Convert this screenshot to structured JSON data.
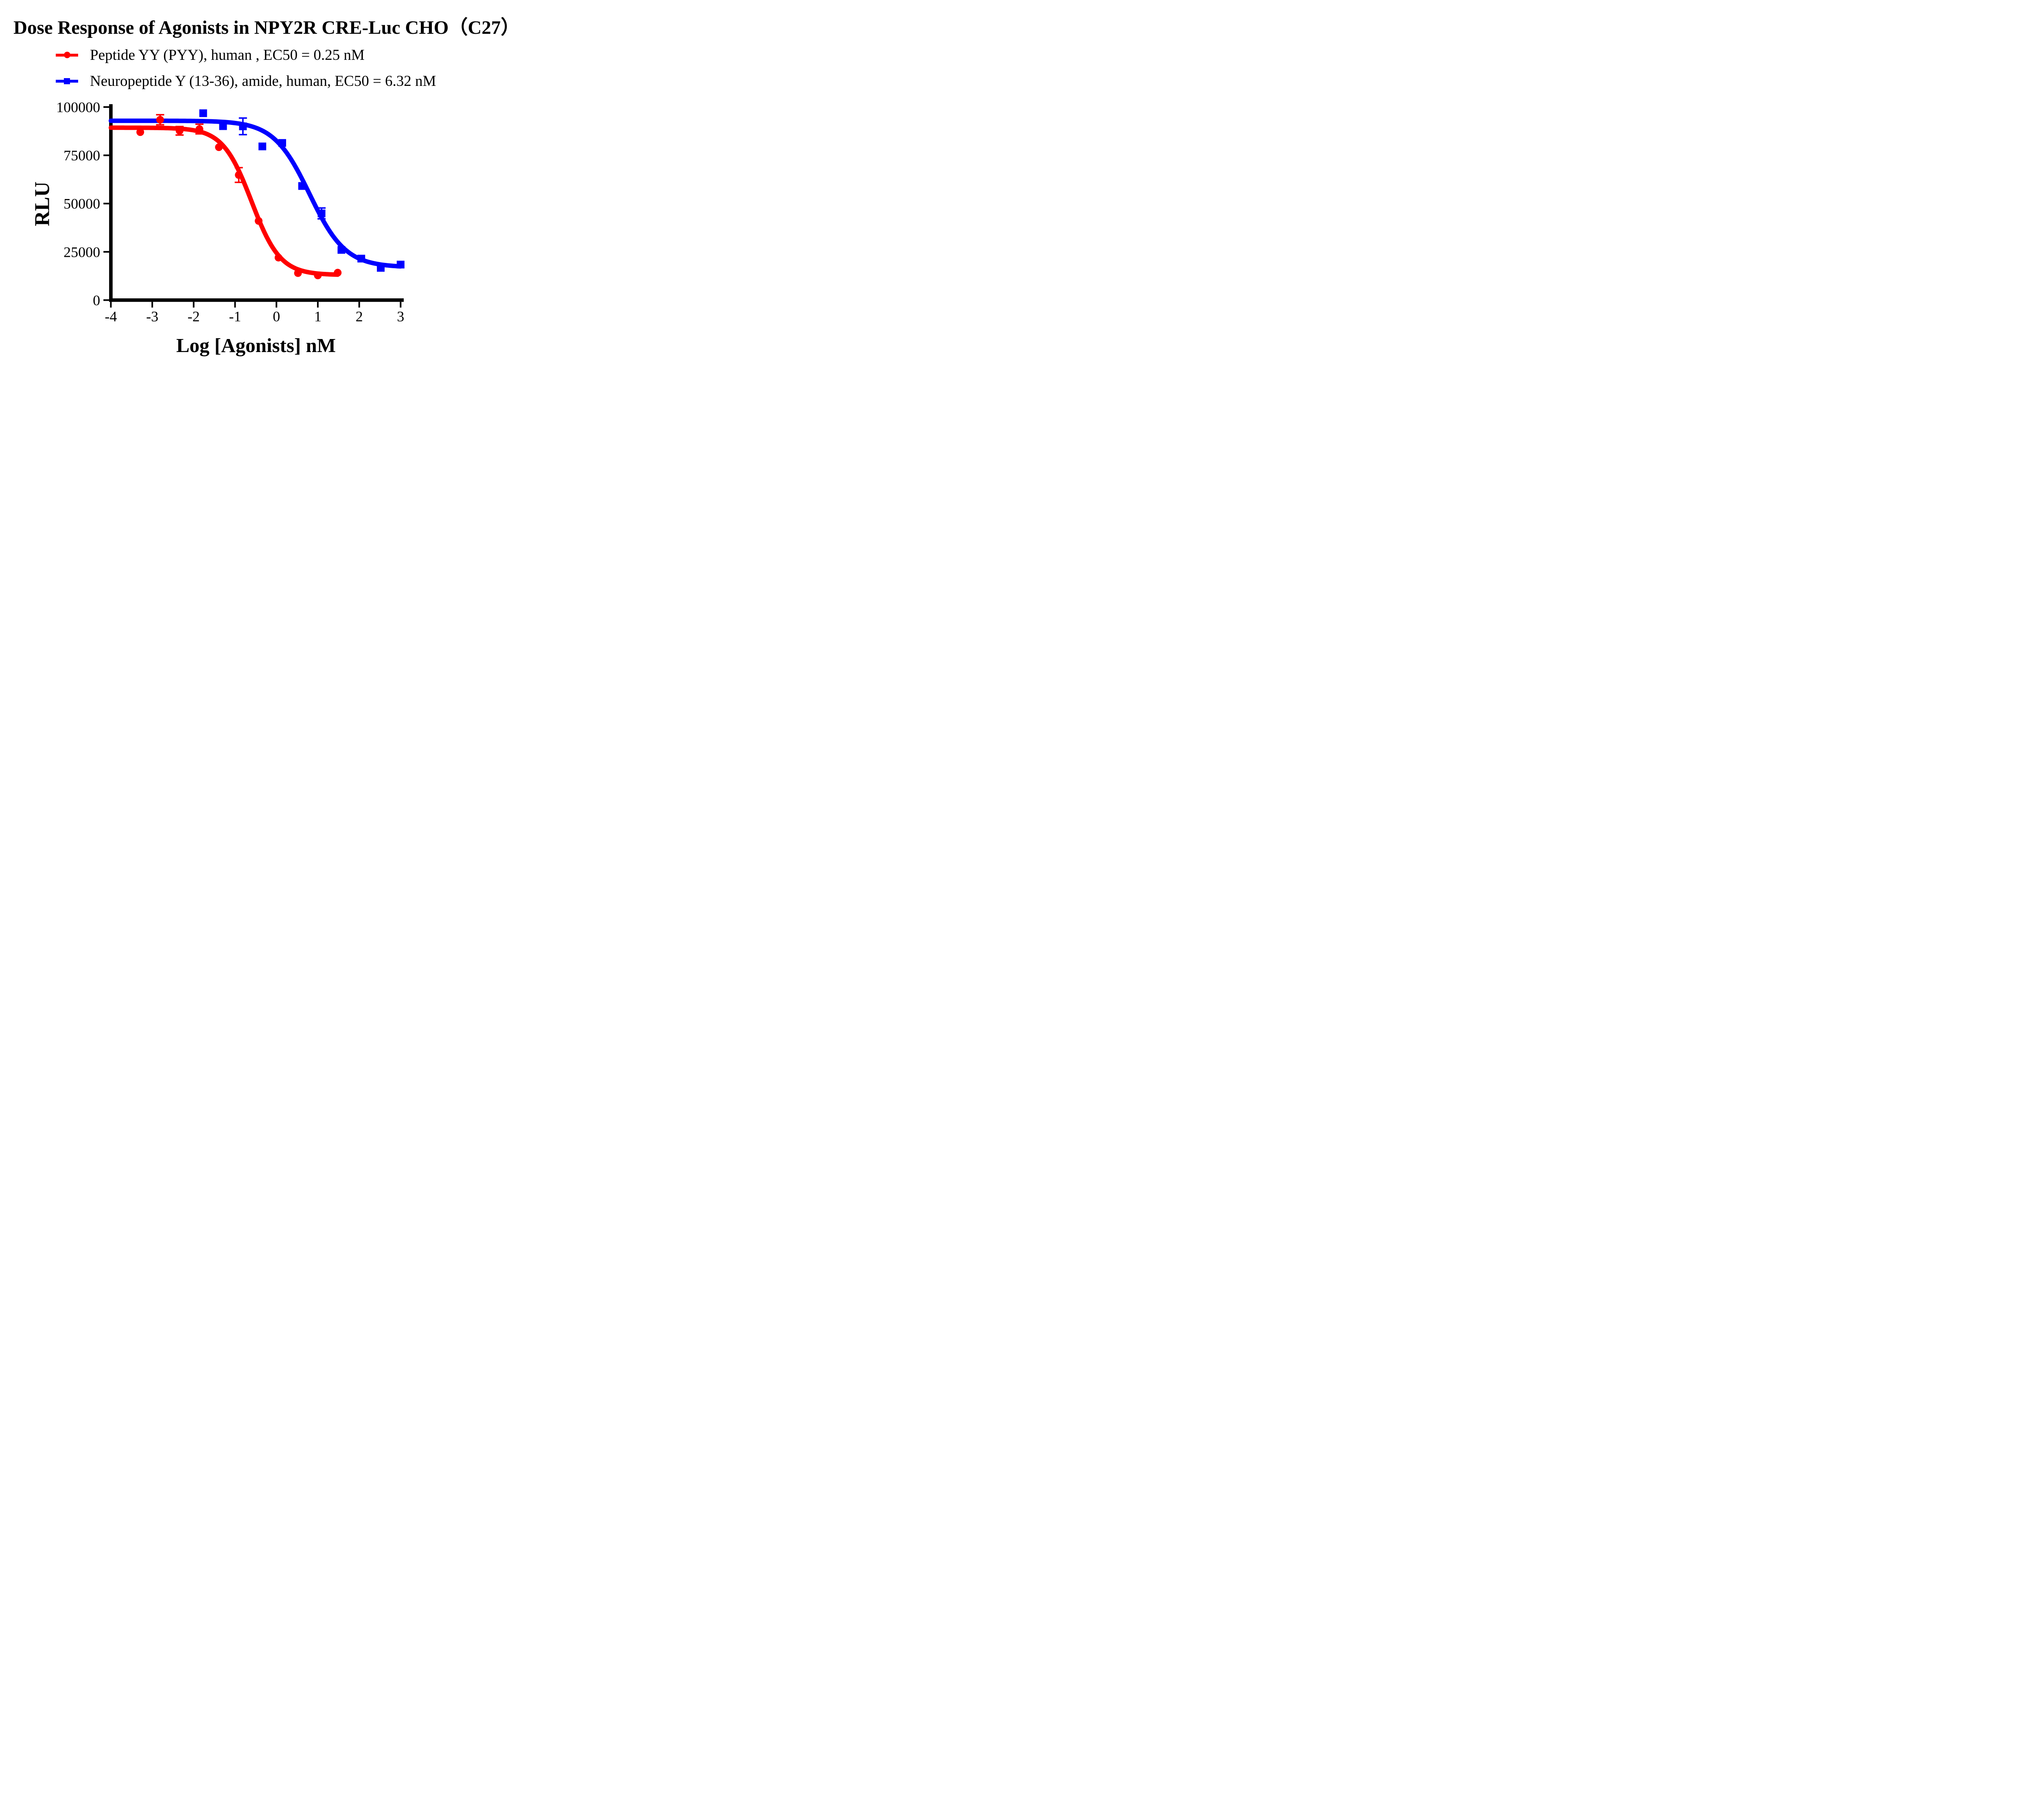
{
  "figure": {
    "background": "#ffffff"
  },
  "chart_data": {
    "type": "scatter",
    "title": "Dose Response of Agonists in NPY2R CRE-Luc CHO（C27）",
    "xlabel": "Log [Agonists] nM",
    "ylabel": "RLU",
    "xlim": [
      -4,
      3
    ],
    "ylim": [
      0,
      100000
    ],
    "grid": false,
    "legend_position": "top-left",
    "x_ticks": [
      -4,
      -3,
      -2,
      -1,
      0,
      1,
      2,
      3
    ],
    "x_tick_labels": [
      "-4",
      "-3",
      "-2",
      "-1",
      "0",
      "1",
      "2",
      "3"
    ],
    "y_ticks": [
      0,
      25000,
      50000,
      75000,
      100000
    ],
    "y_tick_labels": [
      "0",
      "25000",
      "50000",
      "75000",
      "100000"
    ],
    "series": [
      {
        "name": "Peptide YY (PYY), human , EC50 = 0.25 nM",
        "color": "#ff0000",
        "marker": "circle",
        "ec50_nM": 0.25,
        "x": [
          -3.29,
          -2.81,
          -2.34,
          -1.86,
          -1.39,
          -0.91,
          -0.43,
          0.05,
          0.52,
          1.0,
          1.48
        ],
        "y": [
          87000,
          93400,
          87700,
          88600,
          79200,
          64800,
          41000,
          22000,
          14000,
          12800,
          14200
        ],
        "yerr": [
          null,
          2600,
          2200,
          2500,
          null,
          3800,
          null,
          null,
          null,
          null,
          null
        ],
        "fit": {
          "top": 89300,
          "bottom": 13000,
          "logEC50": -0.602,
          "hill": 1.25,
          "x_start": -4,
          "x_end": 1.48
        }
      },
      {
        "name": "Neuropeptide Y (13-36), amide, human, EC50 = 6.32 nM",
        "color": "#0000ff",
        "marker": "square",
        "ec50_nM": 6.32,
        "x": [
          -1.77,
          -1.29,
          -0.81,
          -0.34,
          0.14,
          0.62,
          1.09,
          1.57,
          2.05,
          2.52,
          3.0
        ],
        "y": [
          96800,
          90100,
          90000,
          79600,
          81400,
          59100,
          44900,
          26000,
          21500,
          16700,
          18400
        ],
        "yerr": [
          null,
          null,
          4300,
          null,
          null,
          null,
          2800,
          null,
          null,
          null,
          null
        ],
        "fit": {
          "top": 92900,
          "bottom": 17000,
          "logEC50": 0.8,
          "hill": 1.0,
          "x_start": -4,
          "x_end": 3.0
        }
      }
    ]
  }
}
